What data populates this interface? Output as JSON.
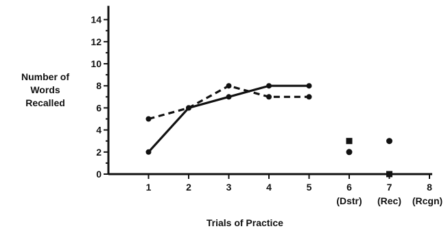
{
  "chart_data": {
    "type": "line",
    "title": "",
    "xlabel": "Trials of Practice",
    "ylabel": [
      "Number of",
      "Words",
      "Recalled"
    ],
    "x_ticks": [
      {
        "value": 1,
        "label": "1"
      },
      {
        "value": 2,
        "label": "2"
      },
      {
        "value": 3,
        "label": "3"
      },
      {
        "value": 4,
        "label": "4"
      },
      {
        "value": 5,
        "label": "5"
      },
      {
        "value": 6,
        "label": "6"
      },
      {
        "value": 7,
        "label": "7"
      },
      {
        "value": 8,
        "label": "8"
      }
    ],
    "x_sublabels": [
      {
        "value": 6,
        "label": "(Dstr)"
      },
      {
        "value": 7,
        "label": "(Rec)"
      },
      {
        "value": 8,
        "label": "(Rcgn)"
      }
    ],
    "y_ticks": [
      0,
      2,
      4,
      6,
      8,
      10,
      12,
      14
    ],
    "xlim": [
      0,
      8
    ],
    "ylim": [
      0,
      15
    ],
    "grid": false,
    "series": [
      {
        "style": "solid",
        "x": [
          1,
          2,
          3,
          4,
          5
        ],
        "y": [
          2,
          6,
          7,
          8,
          8
        ]
      },
      {
        "style": "dashed",
        "x": [
          1,
          2,
          3,
          4,
          5
        ],
        "y": [
          5,
          6,
          8,
          7,
          7
        ]
      }
    ],
    "isolated_points": [
      {
        "x": 6,
        "y": 3,
        "marker": "square"
      },
      {
        "x": 6,
        "y": 2,
        "marker": "circle"
      },
      {
        "x": 7,
        "y": 3,
        "marker": "circle"
      },
      {
        "x": 7,
        "y": 0,
        "marker": "square"
      }
    ]
  }
}
